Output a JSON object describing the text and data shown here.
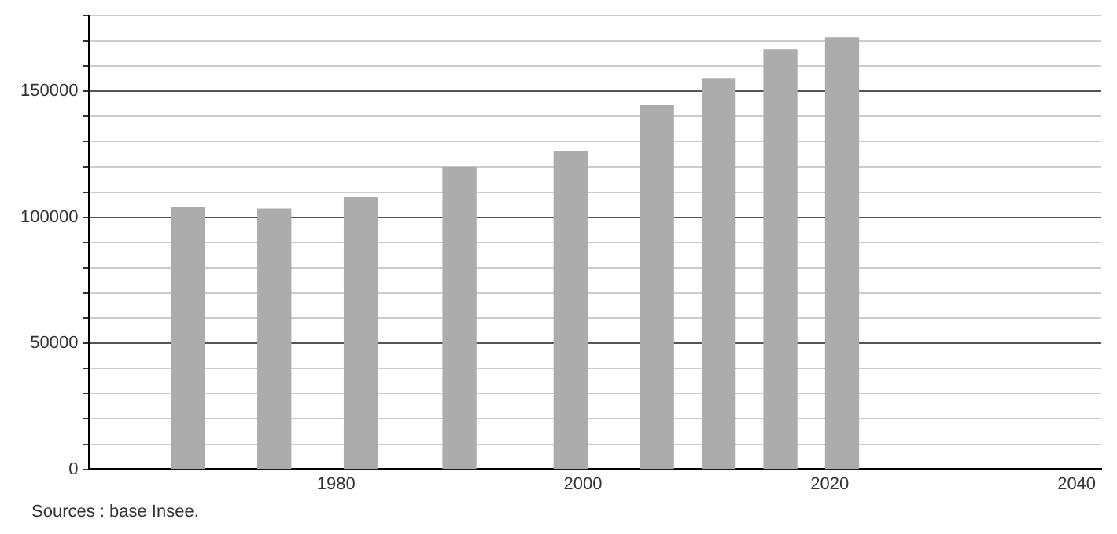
{
  "chart_data": {
    "type": "bar",
    "x": [
      1968,
      1975,
      1982,
      1990,
      1999,
      2006,
      2011,
      2016,
      2021
    ],
    "values": [
      103800,
      103300,
      107800,
      119700,
      126200,
      144300,
      155100,
      166300,
      171300
    ],
    "color": "#acacac",
    "xlim": [
      1960,
      2042
    ],
    "xticks": [
      1980,
      2000,
      2020,
      2040
    ],
    "ylim": [
      0,
      180000
    ],
    "yticks": [
      0,
      {
        "value": 10000,
        "label": null
      },
      {
        "value": 20000,
        "label": null
      },
      {
        "value": 30000,
        "label": null
      },
      {
        "value": 40000,
        "label": null
      },
      50000,
      {
        "value": 60000,
        "label": null
      },
      {
        "value": 70000,
        "label": null
      },
      {
        "value": 80000,
        "label": null
      },
      {
        "value": 90000,
        "label": null
      },
      100000,
      {
        "value": 110000,
        "label": null
      },
      {
        "value": 120000,
        "label": null
      },
      {
        "value": 130000,
        "label": null
      },
      {
        "value": 140000,
        "label": null
      },
      150000,
      {
        "value": 160000,
        "label": null
      },
      {
        "value": 170000,
        "label": null
      },
      {
        "value": 180000,
        "label": null
      }
    ],
    "grid": "y",
    "legend": false,
    "annotations": [
      "Sources : base Insee."
    ]
  }
}
